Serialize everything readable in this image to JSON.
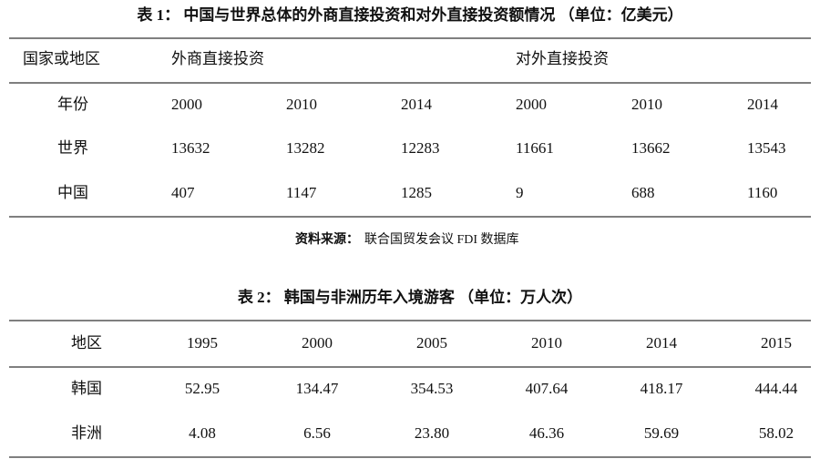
{
  "table1": {
    "title": "表 1：  中国与世界总体的外商直接投资和对外直接投资额情况 （单位：亿美元）",
    "header": [
      "国家或地区",
      "外商直接投资",
      "对外直接投资"
    ],
    "rows": [
      [
        "年份",
        "2000",
        "2010",
        "2014",
        "2000",
        "2010",
        "2014"
      ],
      [
        "世界",
        "13632",
        "13282",
        "12283",
        "11661",
        "13662",
        "13543"
      ],
      [
        "中国",
        "407",
        "1147",
        "1285",
        "9",
        "688",
        "1160"
      ]
    ],
    "source_label": "资料来源：",
    "source_text": "联合国贸发会议 FDI 数据库"
  },
  "table2": {
    "title": "表 2：  韩国与非洲历年入境游客 （单位：万人次）",
    "header": [
      "地区",
      "1995",
      "2000",
      "2005",
      "2010",
      "2014",
      "2015"
    ],
    "rows": [
      [
        "韩国",
        "52.95",
        "134.47",
        "354.53",
        "407.64",
        "418.17",
        "444.44"
      ],
      [
        "非洲",
        "4.08",
        "6.56",
        "23.80",
        "46.36",
        "59.69",
        "58.02"
      ]
    ]
  }
}
